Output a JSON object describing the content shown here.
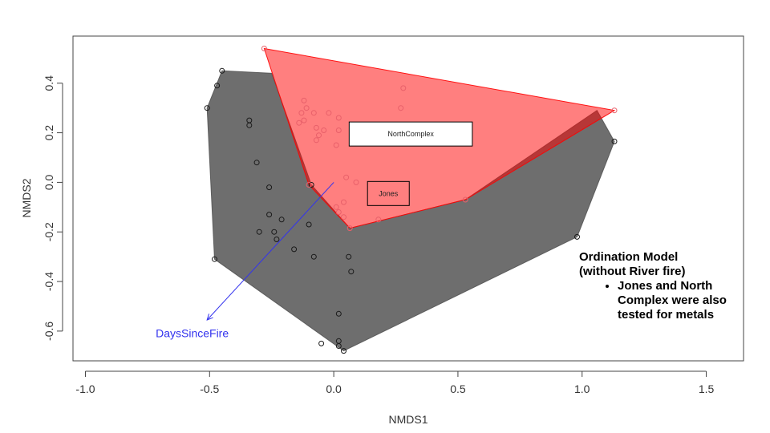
{
  "chart_data": {
    "type": "scatter",
    "subtype": "nmds-ordination",
    "xlabel": "NMDS1",
    "ylabel": "NMDS2",
    "xlim": [
      -1.05,
      1.65
    ],
    "ylim": [
      -0.72,
      0.59
    ],
    "xticks": [
      -1.0,
      -0.5,
      0.0,
      0.5,
      1.0,
      1.5
    ],
    "xtick_labels": [
      "-1.0",
      "-0.5",
      "0.0",
      "0.5",
      "1.0",
      "1.5"
    ],
    "yticks": [
      -0.6,
      -0.4,
      -0.2,
      0.0,
      0.2,
      0.4
    ],
    "ytick_labels": [
      "-0.6",
      "-0.4",
      "-0.2",
      "0.0",
      "0.2",
      "0.4"
    ],
    "grid": false,
    "groups": [
      {
        "name": "Jones",
        "color": "#1a1a1a",
        "fill": "#555555",
        "fill_opacity": 0.85,
        "label_box_fill": "#ff7f7f",
        "label_center": [
          0.22,
          -0.045
        ],
        "hull": [
          [
            -0.45,
            0.45
          ],
          [
            -0.51,
            0.3
          ],
          [
            -0.48,
            -0.31
          ],
          [
            0.04,
            -0.68
          ],
          [
            0.98,
            -0.22
          ],
          [
            1.13,
            0.165
          ],
          [
            1.06,
            0.29
          ],
          [
            0.53,
            -0.07
          ],
          [
            0.065,
            -0.185
          ],
          [
            -0.09,
            -0.01
          ],
          [
            -0.25,
            0.44
          ]
        ],
        "points": [
          [
            -0.45,
            0.45
          ],
          [
            -0.47,
            0.39
          ],
          [
            -0.51,
            0.3
          ],
          [
            -0.34,
            0.25
          ],
          [
            -0.34,
            0.23
          ],
          [
            -0.31,
            0.08
          ],
          [
            -0.26,
            -0.02
          ],
          [
            -0.26,
            -0.13
          ],
          [
            -0.3,
            -0.2
          ],
          [
            -0.24,
            -0.2
          ],
          [
            -0.23,
            -0.23
          ],
          [
            -0.21,
            -0.15
          ],
          [
            -0.16,
            -0.27
          ],
          [
            -0.1,
            -0.17
          ],
          [
            -0.08,
            -0.3
          ],
          [
            -0.09,
            -0.01
          ],
          [
            0.06,
            -0.3
          ],
          [
            0.07,
            -0.36
          ],
          [
            0.02,
            -0.53
          ],
          [
            0.02,
            -0.64
          ],
          [
            0.02,
            -0.66
          ],
          [
            -0.05,
            -0.65
          ],
          [
            0.04,
            -0.68
          ],
          [
            -0.48,
            -0.31
          ],
          [
            0.98,
            -0.22
          ],
          [
            1.13,
            0.165
          ]
        ]
      },
      {
        "name": "NorthComplex",
        "color": "#e8606a",
        "fill": "#ff0000",
        "fill_opacity": 0.5,
        "label_box_fill": "#ffffff",
        "label_center": [
          0.31,
          0.195
        ],
        "hull": [
          [
            -0.28,
            0.54
          ],
          [
            1.13,
            0.29
          ],
          [
            0.53,
            -0.07
          ],
          [
            0.065,
            -0.185
          ],
          [
            -0.1,
            -0.01
          ]
        ],
        "points": [
          [
            -0.28,
            0.54
          ],
          [
            1.13,
            0.29
          ],
          [
            0.53,
            -0.07
          ],
          [
            0.065,
            -0.185
          ],
          [
            -0.1,
            -0.01
          ],
          [
            0.28,
            0.38
          ],
          [
            0.27,
            0.3
          ],
          [
            -0.12,
            0.33
          ],
          [
            -0.11,
            0.3
          ],
          [
            -0.13,
            0.28
          ],
          [
            -0.12,
            0.25
          ],
          [
            -0.14,
            0.24
          ],
          [
            -0.08,
            0.28
          ],
          [
            -0.07,
            0.22
          ],
          [
            -0.04,
            0.21
          ],
          [
            -0.06,
            0.19
          ],
          [
            -0.07,
            0.17
          ],
          [
            -0.02,
            0.28
          ],
          [
            0.02,
            0.26
          ],
          [
            0.02,
            0.21
          ],
          [
            0.01,
            0.15
          ],
          [
            0.04,
            -0.08
          ],
          [
            0.01,
            -0.1
          ],
          [
            0.02,
            -0.12
          ],
          [
            0.04,
            -0.14
          ],
          [
            0.09,
            0.0
          ],
          [
            0.18,
            -0.15
          ],
          [
            0.05,
            0.02
          ]
        ]
      }
    ],
    "vectors": [
      {
        "name": "DaysSinceFire",
        "from": [
          0.0,
          0.0
        ],
        "to": [
          -0.51,
          -0.555
        ],
        "color": "#3333ee",
        "label_at": [
          -0.57,
          -0.625
        ]
      }
    ]
  },
  "annotation": {
    "title_line1": "Ordination Model",
    "title_line2": "(without River fire)",
    "bullets": [
      "Jones and North Complex were also tested for metals"
    ]
  }
}
